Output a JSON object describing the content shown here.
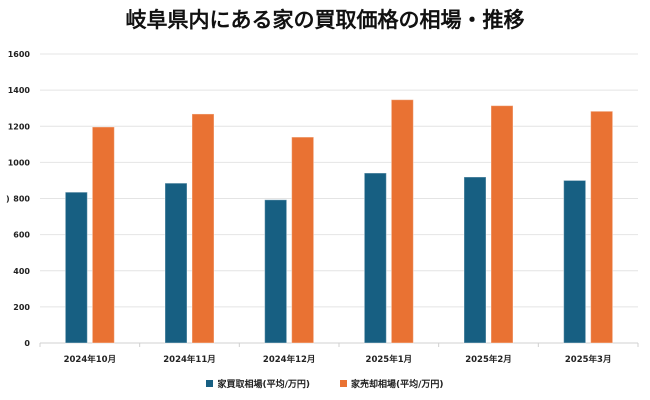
{
  "chart_data": {
    "type": "bar",
    "title": "岐阜県内にある家の買取価格の相場・推移",
    "xlabel": "",
    "ylabel": ")",
    "ylim": [
      0,
      1600
    ],
    "yticks": [
      0,
      200,
      400,
      600,
      800,
      1000,
      1200,
      1400,
      1600
    ],
    "grid": true,
    "legend_position": "bottom",
    "categories": [
      "2024年10月",
      "2024年11月",
      "2024年12月",
      "2025年1月",
      "2025年2月",
      "2025年3月"
    ],
    "series": [
      {
        "name": "家買取相場(平均/万円)",
        "color": "#175f82",
        "values": [
          835,
          885,
          793,
          941,
          919,
          900
        ]
      },
      {
        "name": "家売却相場(平均/万円)",
        "color": "#e97233",
        "values": [
          1196,
          1268,
          1140,
          1347,
          1314,
          1283
        ]
      }
    ]
  }
}
